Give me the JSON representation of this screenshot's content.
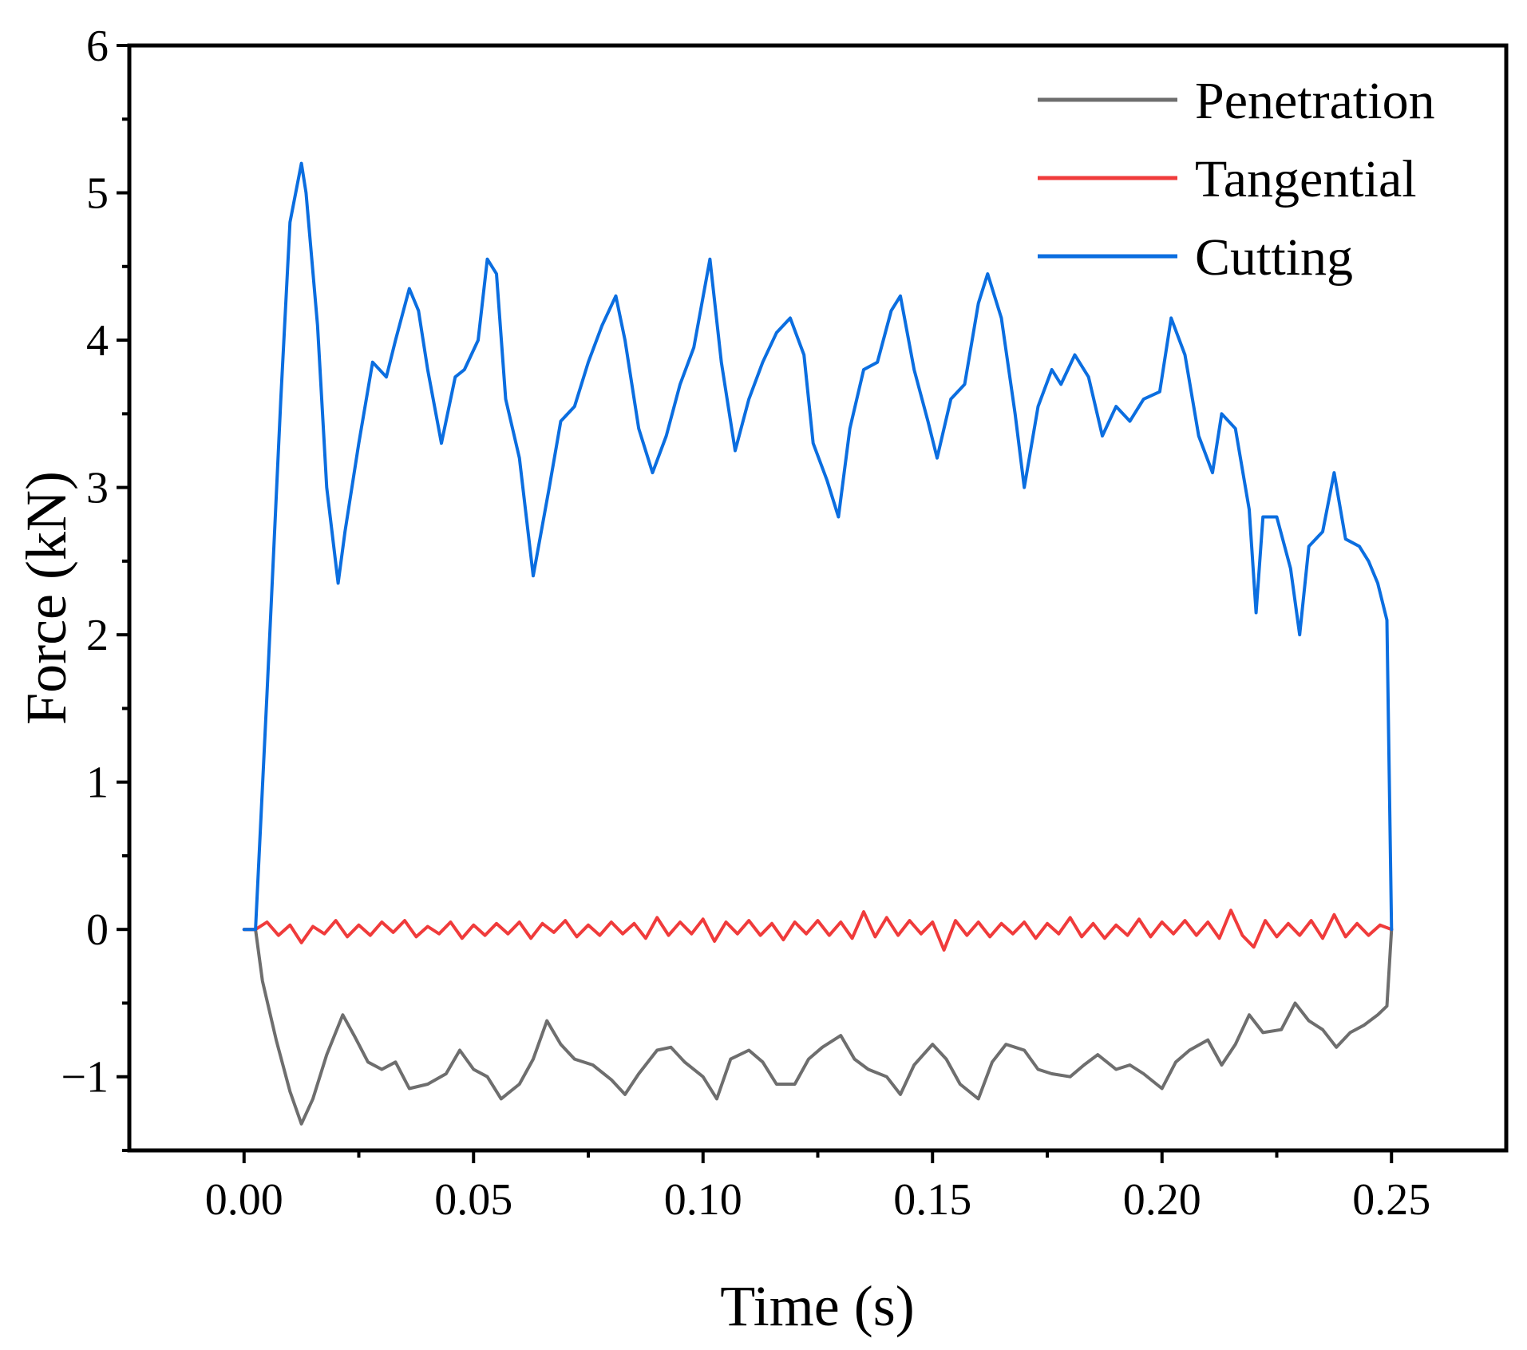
{
  "chart_data": {
    "type": "line",
    "xlabel": "Time (s)",
    "ylabel": "Force (kN)",
    "xlim": [
      -0.025,
      0.275
    ],
    "ylim": [
      -1.5,
      6
    ],
    "x_ticks": [
      0.0,
      0.05,
      0.1,
      0.15,
      0.2,
      0.25
    ],
    "x_tick_labels": [
      "0.00",
      "0.05",
      "0.10",
      "0.15",
      "0.20",
      "0.25"
    ],
    "y_ticks": [
      -1,
      0,
      1,
      2,
      3,
      4,
      5,
      6
    ],
    "y_tick_labels": [
      "−1",
      "0",
      "1",
      "2",
      "3",
      "4",
      "5",
      "6"
    ],
    "grid": false,
    "legend_position": "top-right",
    "series": [
      {
        "name": "Penetration",
        "color": "#6e6e6e",
        "x": [
          0.0,
          0.0025,
          0.004,
          0.007,
          0.01,
          0.0125,
          0.015,
          0.018,
          0.0215,
          0.024,
          0.027,
          0.03,
          0.033,
          0.036,
          0.04,
          0.044,
          0.047,
          0.05,
          0.053,
          0.056,
          0.06,
          0.063,
          0.066,
          0.069,
          0.072,
          0.076,
          0.08,
          0.083,
          0.086,
          0.09,
          0.093,
          0.096,
          0.1,
          0.103,
          0.106,
          0.11,
          0.113,
          0.116,
          0.12,
          0.123,
          0.126,
          0.13,
          0.133,
          0.136,
          0.14,
          0.143,
          0.146,
          0.15,
          0.153,
          0.156,
          0.16,
          0.163,
          0.166,
          0.17,
          0.173,
          0.176,
          0.18,
          0.183,
          0.186,
          0.19,
          0.193,
          0.196,
          0.2,
          0.203,
          0.206,
          0.21,
          0.213,
          0.216,
          0.219,
          0.222,
          0.226,
          0.229,
          0.232,
          0.235,
          0.238,
          0.241,
          0.244,
          0.247,
          0.249,
          0.25
        ],
        "y": [
          0,
          0,
          -0.35,
          -0.75,
          -1.1,
          -1.32,
          -1.15,
          -0.85,
          -0.58,
          -0.72,
          -0.9,
          -0.95,
          -0.9,
          -1.08,
          -1.05,
          -0.98,
          -0.82,
          -0.95,
          -1.0,
          -1.15,
          -1.05,
          -0.88,
          -0.62,
          -0.78,
          -0.88,
          -0.92,
          -1.02,
          -1.12,
          -0.98,
          -0.82,
          -0.8,
          -0.9,
          -1.0,
          -1.15,
          -0.88,
          -0.82,
          -0.9,
          -1.05,
          -1.05,
          -0.88,
          -0.8,
          -0.72,
          -0.88,
          -0.95,
          -1.0,
          -1.12,
          -0.92,
          -0.78,
          -0.88,
          -1.05,
          -1.15,
          -0.9,
          -0.78,
          -0.82,
          -0.95,
          -0.98,
          -1.0,
          -0.92,
          -0.85,
          -0.95,
          -0.92,
          -0.98,
          -1.08,
          -0.9,
          -0.82,
          -0.75,
          -0.92,
          -0.78,
          -0.58,
          -0.7,
          -0.68,
          -0.5,
          -0.62,
          -0.68,
          -0.8,
          -0.7,
          -0.65,
          -0.58,
          -0.52,
          0
        ]
      },
      {
        "name": "Tangential",
        "color": "#f03b3b",
        "x": [
          0.0,
          0.0025,
          0.005,
          0.0075,
          0.01,
          0.0125,
          0.015,
          0.0175,
          0.02,
          0.0225,
          0.025,
          0.0275,
          0.03,
          0.0325,
          0.035,
          0.0375,
          0.04,
          0.0425,
          0.045,
          0.0475,
          0.05,
          0.0525,
          0.055,
          0.0575,
          0.06,
          0.0625,
          0.065,
          0.0675,
          0.07,
          0.0725,
          0.075,
          0.0775,
          0.08,
          0.0825,
          0.085,
          0.0875,
          0.09,
          0.0925,
          0.095,
          0.0975,
          0.1,
          0.1025,
          0.105,
          0.1075,
          0.11,
          0.1125,
          0.115,
          0.1175,
          0.12,
          0.1225,
          0.125,
          0.1275,
          0.13,
          0.1325,
          0.135,
          0.1375,
          0.14,
          0.1425,
          0.145,
          0.1475,
          0.15,
          0.1525,
          0.155,
          0.1575,
          0.16,
          0.1625,
          0.165,
          0.1675,
          0.17,
          0.1725,
          0.175,
          0.1775,
          0.18,
          0.1825,
          0.185,
          0.1875,
          0.19,
          0.1925,
          0.195,
          0.1975,
          0.2,
          0.2025,
          0.205,
          0.2075,
          0.21,
          0.2125,
          0.215,
          0.2175,
          0.22,
          0.2225,
          0.225,
          0.2275,
          0.23,
          0.2325,
          0.235,
          0.2375,
          0.24,
          0.2425,
          0.245,
          0.2475,
          0.25
        ],
        "y": [
          0,
          0,
          0.05,
          -0.04,
          0.03,
          -0.09,
          0.02,
          -0.03,
          0.06,
          -0.05,
          0.03,
          -0.04,
          0.05,
          -0.02,
          0.06,
          -0.05,
          0.02,
          -0.03,
          0.05,
          -0.06,
          0.03,
          -0.04,
          0.04,
          -0.03,
          0.05,
          -0.06,
          0.04,
          -0.02,
          0.06,
          -0.05,
          0.03,
          -0.04,
          0.05,
          -0.03,
          0.04,
          -0.06,
          0.08,
          -0.04,
          0.05,
          -0.03,
          0.07,
          -0.08,
          0.05,
          -0.03,
          0.06,
          -0.04,
          0.04,
          -0.07,
          0.05,
          -0.03,
          0.06,
          -0.04,
          0.05,
          -0.06,
          0.12,
          -0.05,
          0.08,
          -0.04,
          0.06,
          -0.03,
          0.05,
          -0.14,
          0.06,
          -0.04,
          0.05,
          -0.05,
          0.04,
          -0.03,
          0.05,
          -0.06,
          0.04,
          -0.03,
          0.08,
          -0.05,
          0.04,
          -0.06,
          0.03,
          -0.04,
          0.07,
          -0.05,
          0.05,
          -0.03,
          0.06,
          -0.04,
          0.05,
          -0.06,
          0.13,
          -0.04,
          -0.12,
          0.06,
          -0.05,
          0.04,
          -0.04,
          0.06,
          -0.06,
          0.1,
          -0.05,
          0.04,
          -0.04,
          0.03,
          0
        ]
      },
      {
        "name": "Cutting",
        "color": "#0b6ee0",
        "x": [
          0.0,
          0.0025,
          0.005,
          0.008,
          0.01,
          0.0125,
          0.0135,
          0.016,
          0.018,
          0.0205,
          0.022,
          0.025,
          0.028,
          0.031,
          0.033,
          0.036,
          0.038,
          0.04,
          0.043,
          0.046,
          0.048,
          0.051,
          0.053,
          0.055,
          0.057,
          0.06,
          0.063,
          0.0665,
          0.069,
          0.072,
          0.075,
          0.078,
          0.081,
          0.083,
          0.086,
          0.089,
          0.092,
          0.095,
          0.098,
          0.1015,
          0.104,
          0.107,
          0.11,
          0.113,
          0.116,
          0.119,
          0.122,
          0.124,
          0.127,
          0.1295,
          0.132,
          0.135,
          0.138,
          0.141,
          0.143,
          0.146,
          0.149,
          0.151,
          0.154,
          0.157,
          0.16,
          0.162,
          0.165,
          0.168,
          0.17,
          0.173,
          0.176,
          0.178,
          0.181,
          0.184,
          0.187,
          0.19,
          0.193,
          0.196,
          0.1995,
          0.202,
          0.205,
          0.208,
          0.211,
          0.213,
          0.216,
          0.219,
          0.2205,
          0.222,
          0.225,
          0.228,
          0.23,
          0.232,
          0.235,
          0.2375,
          0.24,
          0.243,
          0.245,
          0.247,
          0.249,
          0.25
        ],
        "y": [
          0,
          0,
          1.6,
          3.6,
          4.8,
          5.2,
          5.0,
          4.1,
          3.0,
          2.35,
          2.7,
          3.3,
          3.85,
          3.75,
          4.0,
          4.35,
          4.2,
          3.8,
          3.3,
          3.75,
          3.8,
          4.0,
          4.55,
          4.45,
          3.6,
          3.2,
          2.4,
          3.0,
          3.45,
          3.55,
          3.85,
          4.1,
          4.3,
          4.0,
          3.4,
          3.1,
          3.35,
          3.7,
          3.95,
          4.55,
          3.85,
          3.25,
          3.6,
          3.85,
          4.05,
          4.15,
          3.9,
          3.3,
          3.05,
          2.8,
          3.4,
          3.8,
          3.85,
          4.2,
          4.3,
          3.8,
          3.45,
          3.2,
          3.6,
          3.7,
          4.25,
          4.45,
          4.15,
          3.5,
          3.0,
          3.55,
          3.8,
          3.7,
          3.9,
          3.75,
          3.35,
          3.55,
          3.45,
          3.6,
          3.65,
          4.15,
          3.9,
          3.35,
          3.1,
          3.5,
          3.4,
          2.85,
          2.15,
          2.8,
          2.8,
          2.45,
          2.0,
          2.6,
          2.7,
          3.1,
          2.65,
          2.6,
          2.5,
          2.35,
          2.1,
          0
        ]
      }
    ]
  }
}
